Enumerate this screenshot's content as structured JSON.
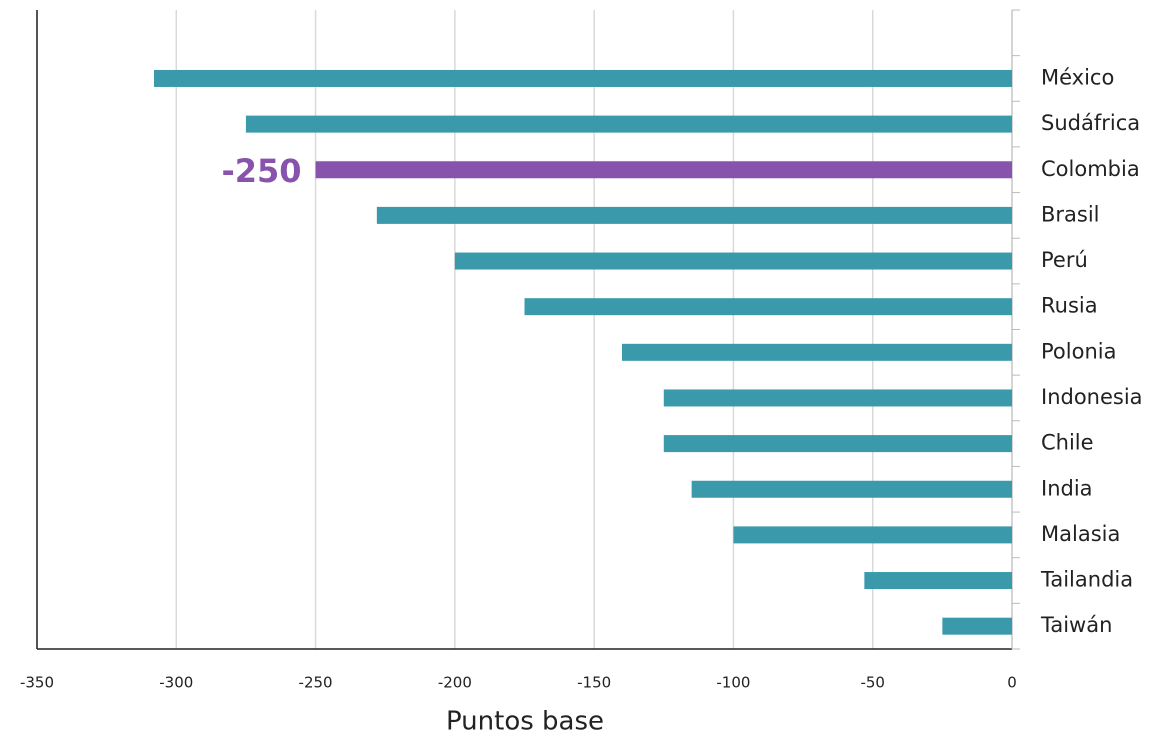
{
  "chart_data": {
    "type": "barh",
    "xlabel": "Puntos base",
    "categories": [
      null,
      "México",
      "Sudáfrica",
      "Colombia",
      "Brasil",
      "Perú",
      "Rusia",
      "Polonia",
      "Indonesia",
      "Chile",
      "India",
      "Malasia",
      "Tailandia",
      "Taiwán"
    ],
    "values": [
      null,
      -308,
      -275,
      -250,
      -228,
      -200,
      -175,
      -140,
      -125,
      -125,
      -115,
      -100,
      -53,
      -25
    ],
    "color": "#3a9aab",
    "highlight_color": "#8753ad",
    "colors": [
      "#3a9aab",
      "#3a9aab",
      "#3a9aab",
      "#8753ad",
      "#3a9aab",
      "#3a9aab",
      "#3a9aab",
      "#3a9aab",
      "#3a9aab",
      "#3a9aab",
      "#3a9aab",
      "#3a9aab",
      "#3a9aab",
      "#3a9aab"
    ],
    "xlim": [
      -350,
      0
    ],
    "xticks": [
      -350,
      -300,
      -250,
      -200,
      -150,
      -100,
      -50,
      0
    ],
    "grid": true
  }
}
